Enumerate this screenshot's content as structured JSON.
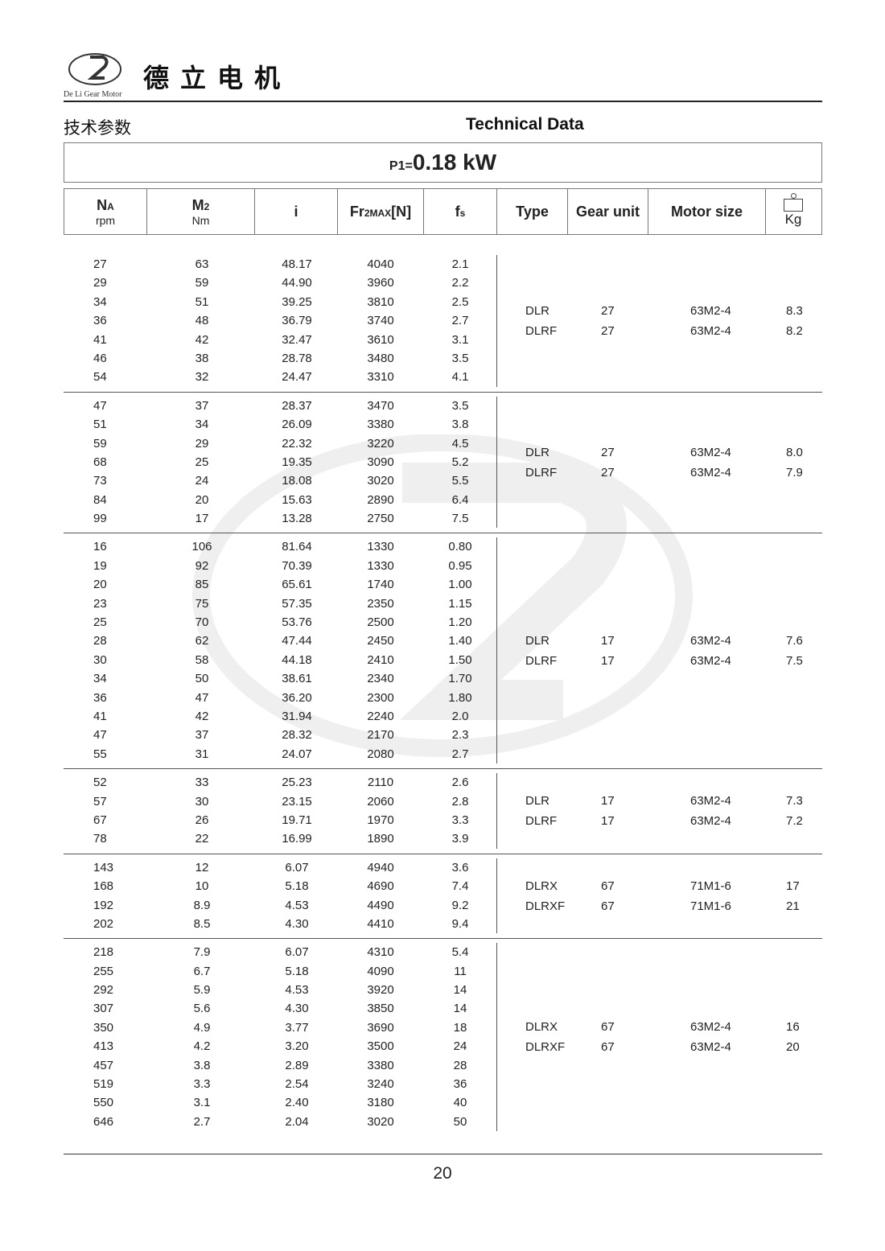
{
  "brand": {
    "name": "德立电机",
    "logo_text": "De Li Gear Motor"
  },
  "titles": {
    "cn": "技术参数",
    "en": "Technical Data"
  },
  "power": {
    "label": "P1=",
    "value": "0.18 kW"
  },
  "headers": [
    {
      "main": "N",
      "sup": "A",
      "sub": "rpm"
    },
    {
      "main": "M",
      "sup": "2",
      "sub": "Nm"
    },
    {
      "main": "i"
    },
    {
      "main": "Fr",
      "sup": "2MAX",
      "tail": "[N]"
    },
    {
      "main": "f",
      "sup": "s"
    },
    {
      "main": "Type"
    },
    {
      "main": "Gear unit"
    },
    {
      "main": "Motor size"
    },
    {
      "main": "Kg",
      "icon": "weight-icon"
    }
  ],
  "groups": [
    {
      "rows": [
        [
          "27",
          "63",
          "48.17",
          "4040",
          "2.1"
        ],
        [
          "29",
          "59",
          "44.90",
          "3960",
          "2.2"
        ],
        [
          "34",
          "51",
          "39.25",
          "3810",
          "2.5"
        ],
        [
          "36",
          "48",
          "36.79",
          "3740",
          "2.7"
        ],
        [
          "41",
          "42",
          "32.47",
          "3610",
          "3.1"
        ],
        [
          "46",
          "38",
          "28.78",
          "3480",
          "3.5"
        ],
        [
          "54",
          "32",
          "24.47",
          "3310",
          "4.1"
        ]
      ],
      "units": [
        [
          "DLR",
          "27",
          "63M2-4",
          "8.3"
        ],
        [
          "DLRF",
          "27",
          "63M2-4",
          "8.2"
        ]
      ]
    },
    {
      "rows": [
        [
          "47",
          "37",
          "28.37",
          "3470",
          "3.5"
        ],
        [
          "51",
          "34",
          "26.09",
          "3380",
          "3.8"
        ],
        [
          "59",
          "29",
          "22.32",
          "3220",
          "4.5"
        ],
        [
          "68",
          "25",
          "19.35",
          "3090",
          "5.2"
        ],
        [
          "73",
          "24",
          "18.08",
          "3020",
          "5.5"
        ],
        [
          "84",
          "20",
          "15.63",
          "2890",
          "6.4"
        ],
        [
          "99",
          "17",
          "13.28",
          "2750",
          "7.5"
        ]
      ],
      "units": [
        [
          "DLR",
          "27",
          "63M2-4",
          "8.0"
        ],
        [
          "DLRF",
          "27",
          "63M2-4",
          "7.9"
        ]
      ]
    },
    {
      "rows": [
        [
          "16",
          "106",
          "81.64",
          "1330",
          "0.80"
        ],
        [
          "19",
          "92",
          "70.39",
          "1330",
          "0.95"
        ],
        [
          "20",
          "85",
          "65.61",
          "1740",
          "1.00"
        ],
        [
          "23",
          "75",
          "57.35",
          "2350",
          "1.15"
        ],
        [
          "25",
          "70",
          "53.76",
          "2500",
          "1.20"
        ],
        [
          "28",
          "62",
          "47.44",
          "2450",
          "1.40"
        ],
        [
          "30",
          "58",
          "44.18",
          "2410",
          "1.50"
        ],
        [
          "34",
          "50",
          "38.61",
          "2340",
          "1.70"
        ],
        [
          "36",
          "47",
          "36.20",
          "2300",
          "1.80"
        ],
        [
          "41",
          "42",
          "31.94",
          "2240",
          "2.0"
        ],
        [
          "47",
          "37",
          "28.32",
          "2170",
          "2.3"
        ],
        [
          "55",
          "31",
          "24.07",
          "2080",
          "2.7"
        ]
      ],
      "units": [
        [
          "DLR",
          "17",
          "63M2-4",
          "7.6"
        ],
        [
          "DLRF",
          "17",
          "63M2-4",
          "7.5"
        ]
      ]
    },
    {
      "rows": [
        [
          "52",
          "33",
          "25.23",
          "2110",
          "2.6"
        ],
        [
          "57",
          "30",
          "23.15",
          "2060",
          "2.8"
        ],
        [
          "67",
          "26",
          "19.71",
          "1970",
          "3.3"
        ],
        [
          "78",
          "22",
          "16.99",
          "1890",
          "3.9"
        ]
      ],
      "units": [
        [
          "DLR",
          "17",
          "63M2-4",
          "7.3"
        ],
        [
          "DLRF",
          "17",
          "63M2-4",
          "7.2"
        ]
      ]
    },
    {
      "rows": [
        [
          "143",
          "12",
          "6.07",
          "4940",
          "3.6"
        ],
        [
          "168",
          "10",
          "5.18",
          "4690",
          "7.4"
        ],
        [
          "192",
          "8.9",
          "4.53",
          "4490",
          "9.2"
        ],
        [
          "202",
          "8.5",
          "4.30",
          "4410",
          "9.4"
        ]
      ],
      "units": [
        [
          "DLRX",
          "67",
          "71M1-6",
          "17"
        ],
        [
          "DLRXF",
          "67",
          "71M1-6",
          "21"
        ]
      ]
    },
    {
      "rows": [
        [
          "218",
          "7.9",
          "6.07",
          "4310",
          "5.4"
        ],
        [
          "255",
          "6.7",
          "5.18",
          "4090",
          "11"
        ],
        [
          "292",
          "5.9",
          "4.53",
          "3920",
          "14"
        ],
        [
          "307",
          "5.6",
          "4.30",
          "3850",
          "14"
        ],
        [
          "350",
          "4.9",
          "3.77",
          "3690",
          "18"
        ],
        [
          "413",
          "4.2",
          "3.20",
          "3500",
          "24"
        ],
        [
          "457",
          "3.8",
          "2.89",
          "3380",
          "28"
        ],
        [
          "519",
          "3.3",
          "2.54",
          "3240",
          "36"
        ],
        [
          "550",
          "3.1",
          "2.40",
          "3180",
          "40"
        ],
        [
          "646",
          "2.7",
          "2.04",
          "3020",
          "50"
        ]
      ],
      "units": [
        [
          "DLRX",
          "67",
          "63M2-4",
          "16"
        ],
        [
          "DLRXF",
          "67",
          "63M2-4",
          "20"
        ]
      ]
    }
  ],
  "watermark": {
    "text": "De Li Gear Motor",
    "chars": "德立"
  },
  "page_number": "20"
}
